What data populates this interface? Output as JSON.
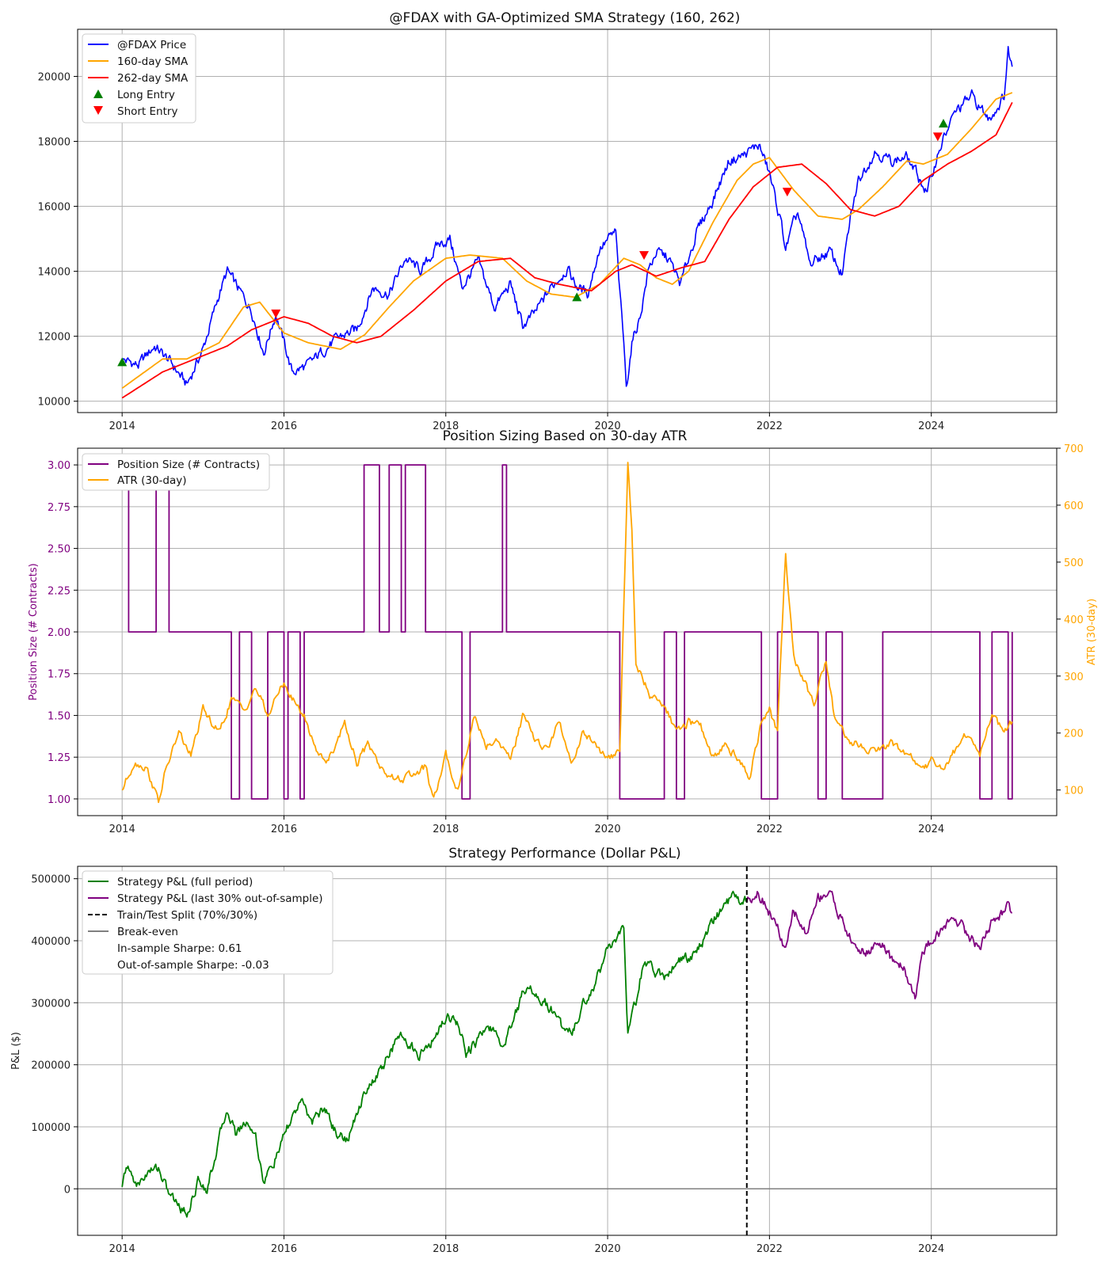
{
  "chart_data": [
    {
      "type": "line",
      "title": "@FDAX with GA-Optimized SMA Strategy (160, 262)",
      "xlim": [
        2013.45,
        2025.55
      ],
      "ylim": [
        9650,
        21450
      ],
      "x_ticks": [
        2014,
        2016,
        2018,
        2020,
        2022,
        2024
      ],
      "y_ticks": [
        10000,
        12000,
        14000,
        16000,
        18000,
        20000
      ],
      "grid": true,
      "legend_position": "upper left",
      "series": [
        {
          "name": "@FDAX Price",
          "color": "#0000ff",
          "x": [
            2014.0,
            2014.2,
            2014.4,
            2014.6,
            2014.8,
            2015.0,
            2015.2,
            2015.3,
            2015.45,
            2015.6,
            2015.75,
            2015.9,
            2016.1,
            2016.3,
            2016.5,
            2016.7,
            2016.9,
            2017.1,
            2017.3,
            2017.5,
            2017.7,
            2017.9,
            2018.05,
            2018.2,
            2018.4,
            2018.6,
            2018.8,
            2018.95,
            2019.1,
            2019.3,
            2019.5,
            2019.6,
            2019.75,
            2019.9,
            2020.1,
            2020.15,
            2020.2,
            2020.23,
            2020.3,
            2020.4,
            2020.5,
            2020.6,
            2020.75,
            2020.9,
            2021.1,
            2021.3,
            2021.5,
            2021.7,
            2021.87,
            2022.0,
            2022.15,
            2022.2,
            2022.35,
            2022.5,
            2022.6,
            2022.75,
            2022.9,
            2023.0,
            2023.1,
            2023.3,
            2023.5,
            2023.7,
            2023.82,
            2023.95,
            2024.1,
            2024.3,
            2024.5,
            2024.7,
            2024.8,
            2024.9,
            2024.95,
            2025.0
          ],
          "y": [
            11300,
            11100,
            11700,
            11200,
            10500,
            11600,
            13300,
            14000,
            13400,
            12800,
            11500,
            12700,
            10900,
            11100,
            11600,
            12000,
            12200,
            13500,
            13300,
            14400,
            14000,
            14800,
            15000,
            13500,
            14300,
            12900,
            13600,
            12300,
            12700,
            13500,
            14100,
            13600,
            13300,
            14700,
            15200,
            13300,
            11800,
            10400,
            11800,
            12600,
            14000,
            14600,
            14400,
            13600,
            15200,
            16200,
            17400,
            17600,
            17900,
            17000,
            15400,
            14700,
            15800,
            14200,
            14400,
            14600,
            13900,
            15600,
            16800,
            17700,
            17400,
            17500,
            17000,
            16400,
            17800,
            18900,
            19400,
            18700,
            19000,
            19400,
            20800,
            20300
          ]
        },
        {
          "name": "160-day SMA",
          "color": "#ffa500",
          "x": [
            2014.0,
            2014.5,
            2014.8,
            2015.2,
            2015.5,
            2015.7,
            2016.0,
            2016.3,
            2016.7,
            2017.0,
            2017.3,
            2017.6,
            2018.0,
            2018.3,
            2018.7,
            2019.0,
            2019.3,
            2019.6,
            2019.9,
            2020.2,
            2020.4,
            2020.6,
            2020.8,
            2021.0,
            2021.3,
            2021.6,
            2021.8,
            2022.0,
            2022.3,
            2022.6,
            2022.9,
            2023.1,
            2023.4,
            2023.7,
            2023.9,
            2024.2,
            2024.5,
            2024.8,
            2025.0
          ],
          "y": [
            10400,
            11300,
            11300,
            11800,
            12900,
            13050,
            12100,
            11800,
            11600,
            12050,
            12900,
            13700,
            14400,
            14500,
            14400,
            13700,
            13300,
            13200,
            13600,
            14400,
            14200,
            13800,
            13600,
            14000,
            15500,
            16800,
            17300,
            17500,
            16500,
            15700,
            15600,
            15900,
            16600,
            17400,
            17300,
            17600,
            18400,
            19300,
            19500
          ]
        },
        {
          "name": "262-day SMA",
          "color": "#ff0000",
          "x": [
            2014.0,
            2014.5,
            2014.9,
            2015.3,
            2015.6,
            2016.0,
            2016.3,
            2016.6,
            2016.9,
            2017.2,
            2017.6,
            2018.0,
            2018.4,
            2018.8,
            2019.1,
            2019.4,
            2019.8,
            2020.1,
            2020.3,
            2020.6,
            2020.9,
            2021.2,
            2021.5,
            2021.8,
            2022.1,
            2022.4,
            2022.7,
            2023.0,
            2023.3,
            2023.6,
            2023.9,
            2024.2,
            2024.5,
            2024.8,
            2025.0
          ],
          "y": [
            10100,
            10900,
            11300,
            11700,
            12200,
            12600,
            12400,
            12000,
            11800,
            12000,
            12800,
            13700,
            14300,
            14400,
            13800,
            13600,
            13400,
            14000,
            14200,
            13850,
            14100,
            14300,
            15600,
            16600,
            17200,
            17300,
            16700,
            15900,
            15700,
            16000,
            16800,
            17300,
            17700,
            18200,
            19200
          ]
        }
      ],
      "long_entries": [
        [
          2014.0,
          11200
        ],
        [
          2019.62,
          13200
        ],
        [
          2024.15,
          18550
        ]
      ],
      "short_entries": [
        [
          2015.9,
          12700
        ],
        [
          2020.45,
          14500
        ],
        [
          2022.22,
          16450
        ],
        [
          2024.08,
          18150
        ]
      ]
    },
    {
      "type": "line",
      "title": "Position Sizing Based on 30-day ATR",
      "xlim": [
        2013.45,
        2025.55
      ],
      "ylim": [
        0.9,
        3.1
      ],
      "y2lim": [
        55,
        700
      ],
      "x_ticks": [
        2014,
        2016,
        2018,
        2020,
        2022,
        2024
      ],
      "y_ticks": [
        1.0,
        1.25,
        1.5,
        1.75,
        2.0,
        2.25,
        2.5,
        2.75,
        3.0
      ],
      "y2_ticks": [
        100,
        200,
        300,
        400,
        500,
        600,
        700
      ],
      "ylabel": "Position Size (# Contracts)",
      "y2label": "ATR (30-day)",
      "grid": true,
      "legend_position": "upper left",
      "series": [
        {
          "name": "Position Size (# Contracts)",
          "color": "#800080",
          "axis": "left",
          "step": true,
          "x": [
            2014.0,
            2014.08,
            2014.42,
            2014.58,
            2015.35,
            2015.45,
            2015.6,
            2015.8,
            2016.0,
            2016.05,
            2016.2,
            2016.25,
            2016.5,
            2016.99,
            2017.18,
            2017.3,
            2017.45,
            2017.5,
            2017.75,
            2017.9,
            2018.2,
            2018.3,
            2018.7,
            2018.75,
            2020.15,
            2020.7,
            2020.85,
            2020.95,
            2021.2,
            2021.9,
            2022.1,
            2022.6,
            2022.7,
            2022.9,
            2023.3,
            2023.4,
            2024.6,
            2024.75,
            2024.95,
            2025.0
          ],
          "y": [
            3,
            2,
            3,
            2,
            1,
            2,
            1,
            2,
            1,
            2,
            1,
            2,
            2,
            3,
            2,
            3,
            2,
            3,
            2,
            2,
            1,
            2,
            3,
            2,
            1,
            2,
            1,
            2,
            2,
            1,
            2,
            1,
            2,
            1,
            1,
            2,
            1,
            2,
            1,
            2
          ]
        },
        {
          "name": "ATR (30-day)",
          "color": "#ffa500",
          "axis": "right",
          "x": [
            2014.0,
            2014.15,
            2014.3,
            2014.45,
            2014.55,
            2014.7,
            2014.85,
            2015.0,
            2015.2,
            2015.35,
            2015.5,
            2015.65,
            2015.8,
            2016.0,
            2016.1,
            2016.25,
            2016.4,
            2016.55,
            2016.75,
            2016.9,
            2017.05,
            2017.2,
            2017.35,
            2017.5,
            2017.65,
            2017.75,
            2017.85,
            2018.0,
            2018.15,
            2018.35,
            2018.5,
            2018.65,
            2018.8,
            2018.95,
            2019.1,
            2019.25,
            2019.4,
            2019.55,
            2019.7,
            2019.85,
            2020.0,
            2020.15,
            2020.2,
            2020.25,
            2020.3,
            2020.35,
            2020.45,
            2020.55,
            2020.7,
            2020.85,
            2021.0,
            2021.15,
            2021.3,
            2021.45,
            2021.6,
            2021.75,
            2021.9,
            2022.0,
            2022.1,
            2022.2,
            2022.25,
            2022.3,
            2022.4,
            2022.55,
            2022.7,
            2022.8,
            2022.95,
            2023.1,
            2023.3,
            2023.5,
            2023.7,
            2023.9,
            2024.0,
            2024.15,
            2024.3,
            2024.45,
            2024.6,
            2024.75,
            2024.9,
            2025.0
          ],
          "y": [
            100,
            150,
            140,
            80,
            140,
            200,
            160,
            240,
            200,
            260,
            240,
            280,
            230,
            290,
            260,
            230,
            170,
            150,
            220,
            150,
            180,
            140,
            120,
            120,
            130,
            140,
            80,
            160,
            100,
            230,
            180,
            190,
            150,
            230,
            190,
            170,
            220,
            150,
            200,
            180,
            150,
            170,
            420,
            670,
            560,
            320,
            290,
            260,
            250,
            200,
            220,
            210,
            160,
            180,
            160,
            120,
            220,
            240,
            200,
            520,
            420,
            330,
            300,
            250,
            330,
            230,
            190,
            180,
            170,
            180,
            160,
            140,
            150,
            140,
            170,
            200,
            160,
            230,
            200,
            220
          ]
        }
      ]
    },
    {
      "type": "line",
      "title": "Strategy Performance (Dollar P&L)",
      "xlim": [
        2013.45,
        2025.55
      ],
      "ylim": [
        -75000,
        520000
      ],
      "x_ticks": [
        2014,
        2016,
        2018,
        2020,
        2022,
        2024
      ],
      "y_ticks": [
        0,
        100000,
        200000,
        300000,
        400000,
        500000
      ],
      "ylabel": "P&L ($)",
      "grid": true,
      "legend_position": "upper left",
      "split_x": 2021.72,
      "in_sample_sharpe_label": "In-sample Sharpe: 0.61",
      "out_of_sample_sharpe_label": "Out-of-sample Sharpe: -0.03",
      "split_label": "Train/Test Split (70%/30%)",
      "breakeven_label": "Break-even",
      "series": [
        {
          "name": "Strategy P&L (full period)",
          "color": "#008000",
          "x": [
            2014.0,
            2014.05,
            2014.2,
            2014.3,
            2014.45,
            2014.55,
            2014.65,
            2014.8,
            2014.95,
            2015.05,
            2015.2,
            2015.3,
            2015.4,
            2015.55,
            2015.65,
            2015.75,
            2015.9,
            2016.05,
            2016.2,
            2016.35,
            2016.5,
            2016.65,
            2016.8,
            2017.0,
            2017.15,
            2017.35,
            2017.5,
            2017.65,
            2017.85,
            2018.0,
            2018.15,
            2018.25,
            2018.4,
            2018.55,
            2018.7,
            2018.85,
            2019.0,
            2019.15,
            2019.3,
            2019.45,
            2019.55,
            2019.7,
            2019.85,
            2020.0,
            2020.1,
            2020.2,
            2020.25,
            2020.35,
            2020.45,
            2020.6,
            2020.7,
            2020.8,
            2020.95,
            2021.1,
            2021.25,
            2021.4,
            2021.55,
            2021.72
          ],
          "y": [
            0,
            35000,
            5000,
            25000,
            35000,
            0,
            -20000,
            -40000,
            15000,
            0,
            80000,
            130000,
            90000,
            110000,
            85000,
            10000,
            50000,
            100000,
            140000,
            110000,
            130000,
            90000,
            80000,
            160000,
            180000,
            230000,
            250000,
            210000,
            240000,
            280000,
            270000,
            220000,
            240000,
            260000,
            230000,
            280000,
            330000,
            310000,
            290000,
            260000,
            250000,
            300000,
            330000,
            390000,
            400000,
            420000,
            250000,
            300000,
            370000,
            350000,
            340000,
            360000,
            370000,
            380000,
            420000,
            450000,
            470000,
            465000
          ]
        },
        {
          "name": "Strategy P&L (last 30% out-of-sample)",
          "color": "#800080",
          "x": [
            2021.72,
            2021.85,
            2021.95,
            2022.1,
            2022.2,
            2022.3,
            2022.45,
            2022.6,
            2022.75,
            2022.9,
            2023.05,
            2023.2,
            2023.35,
            2023.5,
            2023.65,
            2023.8,
            2023.9,
            2024.0,
            2024.15,
            2024.3,
            2024.45,
            2024.6,
            2024.75,
            2024.85,
            2024.95,
            2025.0
          ],
          "y": [
            465000,
            480000,
            460000,
            420000,
            380000,
            450000,
            410000,
            470000,
            480000,
            430000,
            390000,
            380000,
            400000,
            370000,
            360000,
            310000,
            380000,
            400000,
            420000,
            440000,
            410000,
            390000,
            430000,
            440000,
            460000,
            445000
          ]
        }
      ]
    }
  ]
}
